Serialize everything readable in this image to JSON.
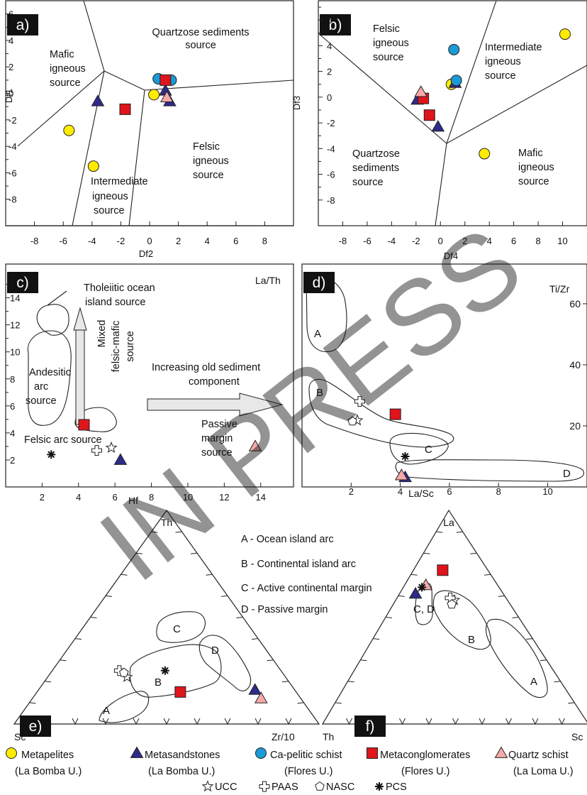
{
  "colors": {
    "metapelites": "#ffec00",
    "metasandstones": "#2e2a8a",
    "ca_pelitic": "#1a9ad6",
    "metaconglomerates": "#e0141b",
    "quartz_schist": "#f4aaa8"
  },
  "panels": {
    "a": {
      "tag": "a)",
      "xlabel": "Df2",
      "ylabel": "Df1",
      "fields": [
        "Quartzose sediments",
        "source",
        "Mafic",
        "igneous",
        "source",
        "Felsic",
        "igneous",
        "source",
        "Intermediate",
        "igneous",
        "source"
      ]
    },
    "b": {
      "tag": "b)",
      "xlabel": "Df4",
      "ylabel": "Df3",
      "fields": [
        "Felsic",
        "igneous",
        "source",
        "Intermediate",
        "igneous",
        "source",
        "Quartzose",
        "sediments",
        "source",
        "Mafic",
        "igneous",
        "source"
      ]
    },
    "c": {
      "tag": "c)",
      "xlabel": "Hf",
      "ylabel": "La/Th",
      "fields": [
        "Tholeiitic ocean",
        "island source",
        "Andesitic",
        "arc",
        "source",
        "Mixed",
        "felsic-mafic",
        "source",
        "Increasing old sediment",
        "component",
        "Passive",
        "margin",
        "source",
        "Felsic arc source"
      ]
    },
    "d": {
      "tag": "d)",
      "xlabel": "La/Sc",
      "ylabel": "Ti/Zr",
      "fields": [
        "A",
        "B",
        "C",
        "D"
      ]
    },
    "e": {
      "tag": "e)",
      "apex_top": "Th",
      "apex_left": "Sc",
      "apex_right": "Zr/10",
      "fields": [
        "A",
        "B",
        "C",
        "D"
      ]
    },
    "f": {
      "tag": "f)",
      "apex_top": "La",
      "apex_left": "Th",
      "apex_right": "Sc",
      "fields": [
        "A",
        "B",
        "C, D"
      ]
    }
  },
  "field_key": [
    "A - Ocean island arc",
    "B - Continental island arc",
    "C - Active continental margin",
    "D - Passive margin"
  ],
  "legend": [
    {
      "series": "metapelites",
      "line1": "Metapelites",
      "line2": "(La Bomba U.)"
    },
    {
      "series": "metasandstones",
      "line1": "Metasandstones",
      "line2": "(La Bomba U.)"
    },
    {
      "series": "ca_pelitic",
      "line1": "Ca-pelitic schist",
      "line2": "(Flores U.)"
    },
    {
      "series": "metaconglomerates",
      "line1": "Metaconglomerates",
      "line2": "(Flores U.)"
    },
    {
      "series": "quartz_schist",
      "line1": "Quartz schist",
      "line2": "(La Loma U.)"
    }
  ],
  "references": [
    "UCC",
    "PAAS",
    "NASC",
    "PCS"
  ],
  "watermark": "IN PRESS",
  "chart_data": [
    {
      "panel": "a",
      "type": "scatter",
      "xlabel": "Df2",
      "ylabel": "Df1",
      "xlim": [
        -10,
        10
      ],
      "ylim": [
        -10,
        7
      ],
      "xticks": [
        -8,
        -6,
        -4,
        -2,
        0,
        2,
        4,
        6,
        8
      ],
      "yticks": [
        -8,
        -6,
        -4,
        -2,
        0,
        2,
        4,
        6
      ],
      "series": [
        {
          "name": "Metapelites (La Bomba U.)",
          "key": "metapelites",
          "marker": "circle",
          "points": [
            [
              -5.6,
              -2.8
            ],
            [
              -3.9,
              -5.5
            ],
            [
              0.3,
              -0.1
            ]
          ]
        },
        {
          "name": "Metasandstones (La Bomba U.)",
          "key": "metasandstones",
          "marker": "triangle",
          "points": [
            [
              -3.6,
              -0.6
            ],
            [
              1.1,
              0.2
            ],
            [
              1.4,
              -0.6
            ]
          ]
        },
        {
          "name": "Ca-pelitic schist (Flores U.)",
          "key": "ca_pelitic",
          "marker": "circle",
          "points": [
            [
              0.6,
              1.1
            ],
            [
              1.5,
              1.0
            ]
          ]
        },
        {
          "name": "Metaconglomerates (Flores U.)",
          "key": "metaconglomerates",
          "marker": "square",
          "points": [
            [
              -1.7,
              -1.2
            ],
            [
              1.1,
              1.0
            ]
          ]
        },
        {
          "name": "Quartz schist (La Loma U.)",
          "key": "quartz_schist",
          "marker": "triangle",
          "points": [
            [
              1.2,
              -0.3
            ]
          ]
        }
      ]
    },
    {
      "panel": "b",
      "type": "scatter",
      "xlabel": "Df4",
      "ylabel": "Df3",
      "xlim": [
        -10,
        12
      ],
      "ylim": [
        -10,
        7.5
      ],
      "xticks": [
        -8,
        -6,
        -4,
        -2,
        0,
        2,
        4,
        6,
        8,
        10
      ],
      "yticks": [
        -8,
        -6,
        -4,
        -2,
        0,
        2,
        4,
        6
      ],
      "series": [
        {
          "name": "Metapelites (La Bomba U.)",
          "key": "metapelites",
          "marker": "circle",
          "points": [
            [
              10.2,
              4.9
            ],
            [
              0.9,
              1.0
            ],
            [
              3.6,
              -4.4
            ]
          ]
        },
        {
          "name": "Metasandstones (La Bomba U.)",
          "key": "metasandstones",
          "marker": "triangle",
          "points": [
            [
              1.2,
              1.1
            ],
            [
              -1.9,
              -0.2
            ],
            [
              -0.2,
              -2.3
            ]
          ]
        },
        {
          "name": "Ca-pelitic schist (Flores U.)",
          "key": "ca_pelitic",
          "marker": "circle",
          "points": [
            [
              1.1,
              3.7
            ],
            [
              1.3,
              1.3
            ]
          ]
        },
        {
          "name": "Metaconglomerates (Flores U.)",
          "key": "metaconglomerates",
          "marker": "square",
          "points": [
            [
              -1.4,
              -0.1
            ],
            [
              -0.9,
              -1.4
            ]
          ]
        },
        {
          "name": "Quartz schist (La Loma U.)",
          "key": "quartz_schist",
          "marker": "triangle",
          "points": [
            [
              -1.6,
              0.4
            ]
          ]
        }
      ]
    },
    {
      "panel": "c",
      "type": "scatter",
      "xlabel": "Hf",
      "ylabel": "La/Th",
      "xlim": [
        0,
        15.8
      ],
      "ylim": [
        0,
        16.5
      ],
      "xticks": [
        2,
        4,
        6,
        8,
        10,
        12,
        14
      ],
      "yticks": [
        2,
        4,
        6,
        8,
        10,
        12,
        14
      ],
      "series": [
        {
          "name": "Metasandstones (La Bomba U.)",
          "key": "metasandstones",
          "marker": "triangle",
          "points": [
            [
              6.3,
              2.0
            ]
          ]
        },
        {
          "name": "Metaconglomerates (Flores U.)",
          "key": "metaconglomerates",
          "marker": "square",
          "points": [
            [
              4.3,
              4.6
            ]
          ]
        },
        {
          "name": "Quartz schist (La Loma U.)",
          "key": "quartz_schist",
          "marker": "triangle",
          "points": [
            [
              13.7,
              3.0
            ]
          ]
        },
        {
          "name": "UCC",
          "marker": "star",
          "points": [
            [
              5.8,
              2.9
            ]
          ]
        },
        {
          "name": "PAAS",
          "marker": "plus",
          "points": [
            [
              5.0,
              2.7
            ]
          ]
        },
        {
          "name": "PCS",
          "marker": "asterisk",
          "points": [
            [
              2.5,
              2.4
            ]
          ]
        }
      ]
    },
    {
      "panel": "d",
      "type": "scatter",
      "xlabel": "La/Sc",
      "ylabel": "Ti/Zr",
      "xlim": [
        0,
        11.6
      ],
      "ylim": [
        0,
        73
      ],
      "xticks": [
        2,
        4,
        6,
        8,
        10
      ],
      "yticks": [
        20,
        40,
        60
      ],
      "series": [
        {
          "name": "Metasandstones (La Bomba U.)",
          "key": "metasandstones",
          "marker": "triangle",
          "points": [
            [
              4.2,
              3.2
            ]
          ]
        },
        {
          "name": "Metaconglomerates (Flores U.)",
          "key": "metaconglomerates",
          "marker": "square",
          "points": [
            [
              3.8,
              23.8
            ]
          ]
        },
        {
          "name": "Quartz schist (La Loma U.)",
          "key": "quartz_schist",
          "marker": "triangle",
          "points": [
            [
              4.05,
              3.8
            ]
          ]
        },
        {
          "name": "UCC",
          "marker": "star",
          "points": [
            [
              2.25,
              21.8
            ]
          ]
        },
        {
          "name": "PAAS",
          "marker": "plus",
          "points": [
            [
              2.35,
              28.0
            ]
          ]
        },
        {
          "name": "NASC",
          "marker": "pentagon",
          "points": [
            [
              2.05,
              21.5
            ]
          ]
        },
        {
          "name": "PCS",
          "marker": "asterisk",
          "points": [
            [
              4.2,
              10.0
            ]
          ]
        }
      ]
    },
    {
      "panel": "e",
      "type": "ternary",
      "apices": [
        "Th",
        "Sc",
        "Zr/10"
      ],
      "series": [
        {
          "name": "Metasandstones (La Bomba U.)",
          "key": "metasandstones",
          "marker": "triangle",
          "points": [
            [
              0.16,
              0.13,
              0.71
            ]
          ]
        },
        {
          "name": "Metaconglomerates (Flores U.)",
          "key": "metaconglomerates",
          "marker": "square",
          "points": [
            [
              0.15,
              0.38,
              0.47
            ]
          ]
        },
        {
          "name": "Quartz schist (La Loma U.)",
          "key": "quartz_schist",
          "marker": "triangle",
          "points": [
            [
              0.12,
              0.13,
              0.75
            ]
          ]
        },
        {
          "name": "UCC",
          "marker": "star",
          "points": [
            [
              0.22,
              0.52,
              0.26
            ]
          ]
        },
        {
          "name": "PAAS",
          "marker": "plus",
          "points": [
            [
              0.25,
              0.53,
              0.22
            ]
          ]
        },
        {
          "name": "NASC",
          "marker": "pentagon",
          "points": [
            [
              0.24,
              0.52,
              0.24
            ]
          ]
        },
        {
          "name": "PCS",
          "marker": "asterisk",
          "points": [
            [
              0.25,
              0.38,
              0.37
            ]
          ]
        }
      ]
    },
    {
      "panel": "f",
      "type": "ternary",
      "apices": [
        "La",
        "Th",
        "Sc"
      ],
      "series": [
        {
          "name": "Metasandstones (La Bomba U.)",
          "key": "metasandstones",
          "marker": "triangle",
          "points": [
            [
              0.61,
              0.33,
              0.06
            ]
          ]
        },
        {
          "name": "Metaconglomerates (Flores U.)",
          "key": "metaconglomerates",
          "marker": "square",
          "points": [
            [
              0.72,
              0.17,
              0.11
            ]
          ]
        },
        {
          "name": "Quartz schist (La Loma U.)",
          "key": "quartz_schist",
          "marker": "triangle",
          "points": [
            [
              0.65,
              0.27,
              0.08
            ]
          ]
        },
        {
          "name": "UCC",
          "marker": "star",
          "points": [
            [
              0.58,
              0.2,
              0.22
            ]
          ]
        },
        {
          "name": "PAAS",
          "marker": "plus",
          "points": [
            [
              0.59,
              0.21,
              0.2
            ]
          ]
        },
        {
          "name": "NASC",
          "marker": "pentagon",
          "points": [
            [
              0.56,
              0.22,
              0.22
            ]
          ]
        },
        {
          "name": "PCS",
          "marker": "asterisk",
          "points": [
            [
              0.64,
              0.29,
              0.07
            ]
          ]
        }
      ]
    }
  ]
}
